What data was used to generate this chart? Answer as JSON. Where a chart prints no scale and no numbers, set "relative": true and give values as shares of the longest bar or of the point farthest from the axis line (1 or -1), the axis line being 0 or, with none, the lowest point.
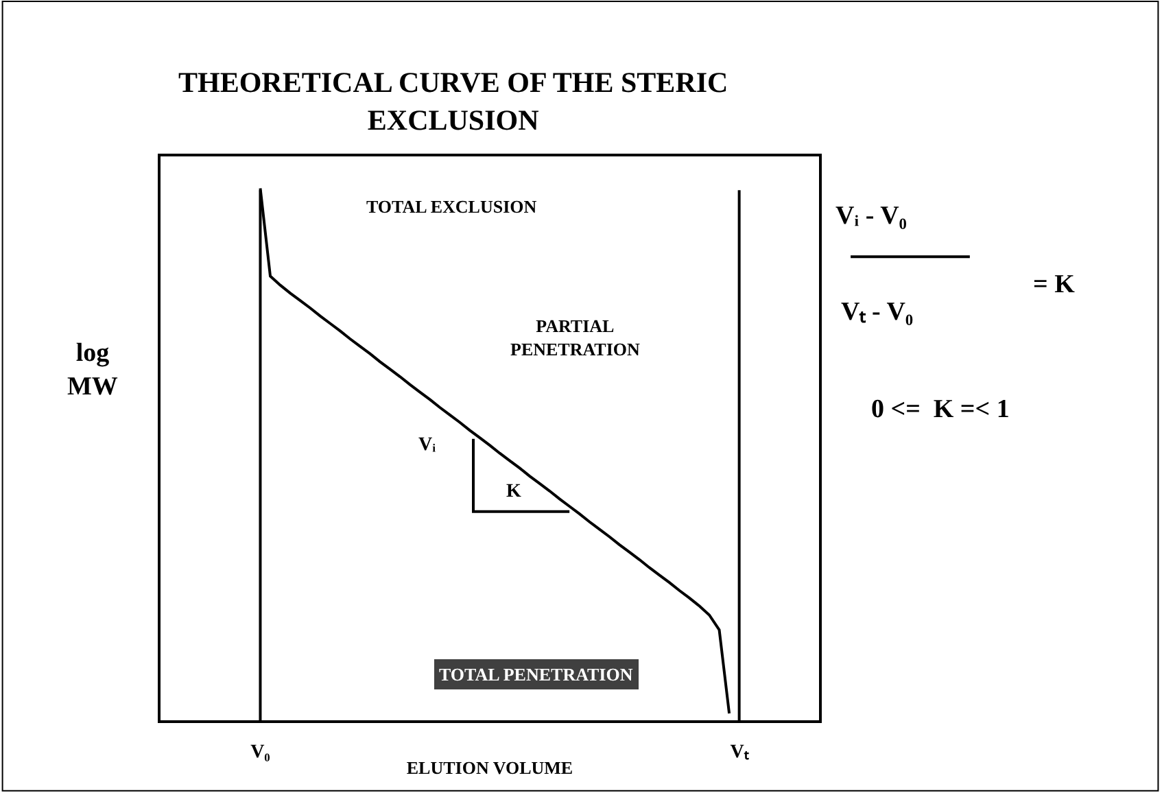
{
  "chart_data": {
    "type": "line",
    "title": "THEORETICAL CURVE OF THE STERIC EXCLUSION",
    "xlabel": "ELUTION VOLUME",
    "ylabel": "log MW",
    "relative": true,
    "categories": [
      null,
      null,
      null,
      null,
      null,
      null,
      null,
      null,
      null,
      null,
      "V₀",
      null,
      null,
      null,
      null,
      null,
      null,
      null,
      null,
      null,
      null,
      null,
      null,
      null,
      null,
      null,
      null,
      null,
      null,
      null,
      null,
      null,
      null,
      null,
      null,
      null,
      null,
      null,
      null,
      null,
      null,
      null,
      null,
      null,
      null,
      null,
      null,
      null,
      null,
      null,
      null,
      null,
      null,
      null,
      null,
      null,
      null,
      null,
      "Vₜ",
      null,
      null,
      null,
      null,
      null,
      null,
      null,
      null
    ],
    "series": [
      {
        "color": "#000000",
        "values": [
          null,
          null,
          null,
          null,
          null,
          null,
          null,
          null,
          null,
          null,
          1,
          0.835,
          0.818,
          0.803,
          0.789,
          0.775,
          0.76,
          0.746,
          0.732,
          0.717,
          0.703,
          0.689,
          0.674,
          0.66,
          0.646,
          0.631,
          0.617,
          0.603,
          0.588,
          0.574,
          0.56,
          0.545,
          0.531,
          0.517,
          0.502,
          0.488,
          0.474,
          0.459,
          0.445,
          0.431,
          0.416,
          0.402,
          0.388,
          0.373,
          0.359,
          0.345,
          0.33,
          0.316,
          0.302,
          0.287,
          0.273,
          0.259,
          0.244,
          0.23,
          0.215,
          0.198,
          0.17,
          0.013,
          null,
          null,
          null,
          null,
          null,
          null,
          null,
          null,
          null
        ]
      }
    ],
    "ref_lines": [
      {
        "axis": "x",
        "value": "V₀",
        "color": "#000000"
      },
      {
        "axis": "x",
        "value": "Vₜ",
        "color": "#000000"
      }
    ],
    "annotations": [
      "TOTAL EXCLUSION",
      "PARTIAL PENETRATION",
      "Vᵢ",
      "K",
      "TOTAL PENETRATION",
      "Vᵢ - V₀",
      "Vₜ - V₀",
      "= K",
      "0 <=  K =< 1"
    ],
    "marker": "none",
    "line_style": "solid"
  }
}
